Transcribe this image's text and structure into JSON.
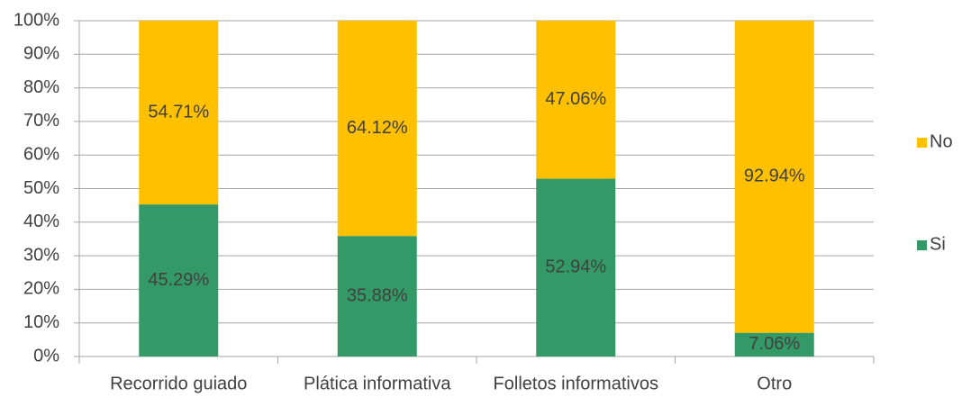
{
  "chart_data": {
    "type": "stacked_bar",
    "categories": [
      "Recorrido guiado",
      "Plática informativa",
      "Folletos informativos",
      "Otro"
    ],
    "series": [
      {
        "name": "Si",
        "color": "#339966",
        "values": [
          45.29,
          35.88,
          52.94,
          7.06
        ],
        "value_labels": [
          "45.29%",
          "35.88%",
          "52.94%",
          "7.06%"
        ]
      },
      {
        "name": "No",
        "color": "#ffc000",
        "values": [
          54.71,
          64.12,
          47.06,
          92.94
        ],
        "value_labels": [
          "54.71%",
          "64.12%",
          "47.06%",
          "92.94%"
        ]
      }
    ],
    "ylim": [
      0,
      100
    ],
    "yticks": [
      {
        "value": 0,
        "label": "0%"
      },
      {
        "value": 10,
        "label": "10%"
      },
      {
        "value": 20,
        "label": "20%"
      },
      {
        "value": 30,
        "label": "30%"
      },
      {
        "value": 40,
        "label": "40%"
      },
      {
        "value": 50,
        "label": "50%"
      },
      {
        "value": 60,
        "label": "60%"
      },
      {
        "value": 70,
        "label": "70%"
      },
      {
        "value": 80,
        "label": "80%"
      },
      {
        "value": 90,
        "label": "90%"
      },
      {
        "value": 100,
        "label": "100%"
      }
    ],
    "grid": true,
    "legend": "right"
  }
}
